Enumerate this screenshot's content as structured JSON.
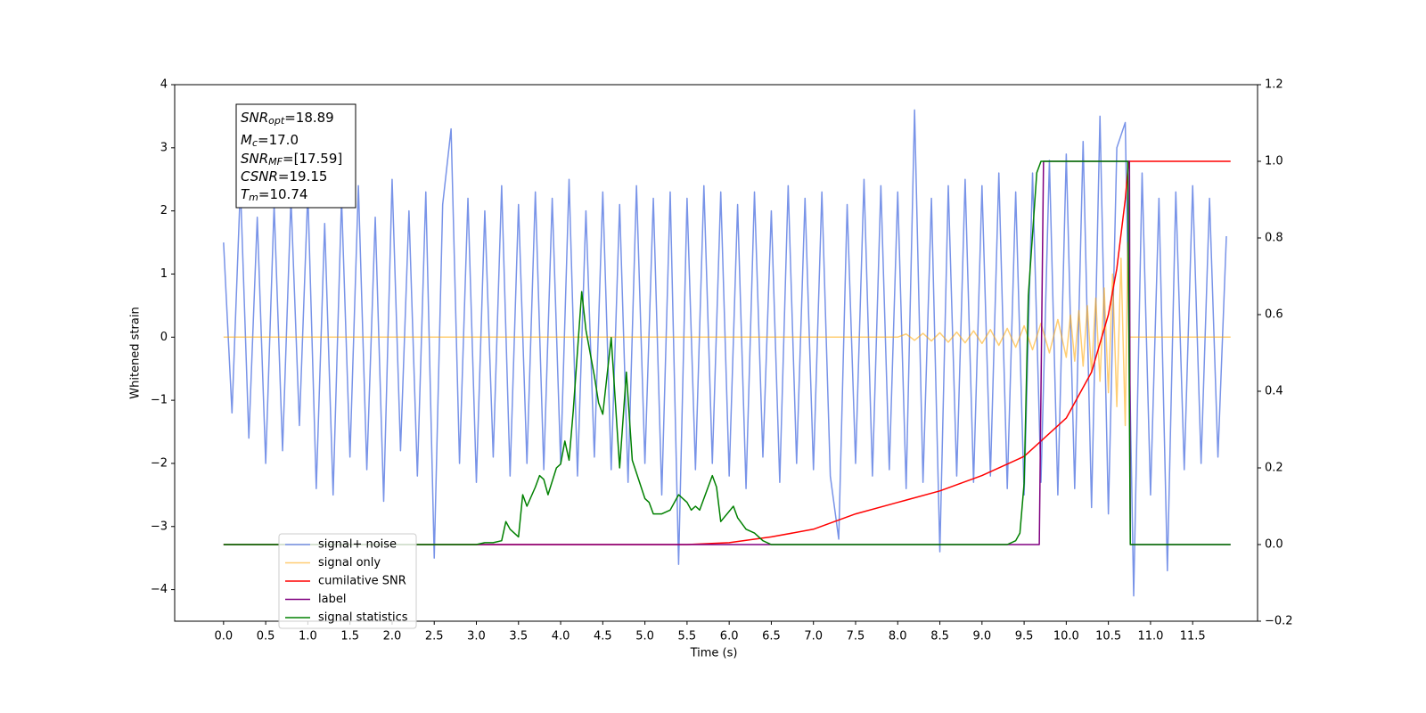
{
  "chart_data": {
    "type": "line",
    "xlabel": "Time (s)",
    "ylabel": "Whitened strain",
    "xlim": [
      -0.58,
      12.27
    ],
    "ylim": [
      -4.5,
      4
    ],
    "y2lim": [
      -0.2,
      1.2
    ],
    "xticks": [
      {
        "value": 0,
        "label": "0.0"
      },
      0.5,
      {
        "value": 1,
        "label": "1.0"
      },
      1.5,
      {
        "value": 2,
        "label": "2.0"
      },
      2.5,
      {
        "value": 3,
        "label": "3.0"
      },
      3.5,
      {
        "value": 4,
        "label": "4.0"
      },
      4.5,
      {
        "value": 5,
        "label": "5.0"
      },
      5.5,
      {
        "value": 6,
        "label": "6.0"
      },
      6.5,
      {
        "value": 7,
        "label": "7.0"
      },
      7.5,
      {
        "value": 8,
        "label": "8.0"
      },
      8.5,
      {
        "value": 9,
        "label": "9.0"
      },
      9.5,
      {
        "value": 10,
        "label": "10.0"
      },
      10.5,
      {
        "value": 11,
        "label": "11.0"
      },
      11.5
    ],
    "yticks": [
      {
        "value": -4,
        "label": "−4"
      },
      {
        "value": -3,
        "label": "−3"
      },
      {
        "value": -2,
        "label": "−2"
      },
      {
        "value": -1,
        "label": "−1"
      },
      0,
      1,
      2,
      3,
      4
    ],
    "y2ticks": [
      {
        "value": -0.2,
        "label": "−0.2"
      },
      {
        "value": 0,
        "label": "0.0"
      },
      0.2,
      0.4,
      0.6,
      0.8,
      {
        "value": 1,
        "label": "1.0"
      },
      1.2
    ],
    "legend": "lower left",
    "annotations": [
      {
        "symbol": "SNR",
        "subscript": "opt",
        "text": "=18.89"
      },
      {
        "symbol": "M",
        "subscript": "c",
        "text": "=17.0"
      },
      {
        "symbol": "SNR",
        "subscript": "MF",
        "text": "=[17.59]"
      },
      {
        "symbol": "CSNR",
        "text": "=19.15"
      },
      {
        "symbol": "T",
        "subscript": "m",
        "text": "=10.74"
      }
    ],
    "series": [
      {
        "name": "signal+ noise",
        "color": "#7893e8",
        "x": [
          0,
          0.1,
          0.2,
          0.3,
          0.4,
          0.5,
          0.6,
          0.7,
          0.8,
          0.9,
          1,
          1.1,
          1.2,
          1.3,
          1.4,
          1.5,
          1.6,
          1.7,
          1.8,
          1.9,
          2,
          2.1,
          2.2,
          2.3,
          2.4,
          2.5,
          2.6,
          2.7,
          2.8,
          2.9,
          3,
          3.1,
          3.2,
          3.3,
          3.4,
          3.5,
          3.6,
          3.7,
          3.8,
          3.9,
          4,
          4.1,
          4.2,
          4.3,
          4.4,
          4.5,
          4.6,
          4.7,
          4.8,
          4.9,
          5,
          5.1,
          5.2,
          5.3,
          5.4,
          5.5,
          5.6,
          5.7,
          5.8,
          5.9,
          6,
          6.1,
          6.2,
          6.3,
          6.4,
          6.5,
          6.6,
          6.7,
          6.8,
          6.9,
          7,
          7.1,
          7.2,
          7.3,
          7.4,
          7.5,
          7.6,
          7.7,
          7.8,
          7.9,
          8,
          8.1,
          8.2,
          8.3,
          8.4,
          8.5,
          8.6,
          8.7,
          8.8,
          8.9,
          9,
          9.1,
          9.2,
          9.3,
          9.4,
          9.5,
          9.6,
          9.7,
          9.8,
          9.9,
          10,
          10.1,
          10.2,
          10.3,
          10.4,
          10.5,
          10.6,
          10.7,
          10.8,
          10.9,
          11,
          11.1,
          11.2,
          11.3,
          11.4,
          11.5,
          11.6,
          11.7,
          11.8,
          11.9
        ],
        "values": [
          1.5,
          -1.2,
          2.4,
          -1.6,
          1.9,
          -2.0,
          2.1,
          -1.8,
          2.2,
          -1.4,
          2.3,
          -2.4,
          1.8,
          -2.5,
          2.2,
          -1.9,
          2.4,
          -2.1,
          1.9,
          -2.6,
          2.5,
          -1.8,
          2.0,
          -2.2,
          2.3,
          -3.5,
          2.1,
          3.3,
          -2.0,
          2.2,
          -2.3,
          2.0,
          -1.9,
          2.4,
          -2.2,
          2.1,
          -2.0,
          2.3,
          -2.1,
          2.2,
          -2.0,
          2.5,
          -2.2,
          2.0,
          -1.9,
          2.3,
          -2.1,
          2.1,
          -2.3,
          2.4,
          -2.0,
          2.2,
          -2.5,
          2.3,
          -3.6,
          2.2,
          -2.1,
          2.4,
          -2.0,
          2.3,
          -2.2,
          2.1,
          -2.4,
          2.3,
          -1.9,
          2.0,
          -2.3,
          2.4,
          -2.0,
          2.2,
          -2.1,
          2.3,
          -2.2,
          -3.2,
          2.1,
          -2.0,
          2.5,
          -2.2,
          2.4,
          -2.1,
          2.3,
          -2.4,
          3.6,
          -2.3,
          2.2,
          -3.4,
          2.4,
          -2.2,
          2.5,
          -2.3,
          2.4,
          -2.2,
          2.6,
          -2.4,
          2.3,
          -2.5,
          2.6,
          -2.3,
          2.8,
          -2.5,
          2.9,
          -2.4,
          3.1,
          -2.7,
          3.5,
          -2.8,
          3.0,
          3.4,
          -4.1,
          2.6,
          -2.5,
          2.2,
          -3.7,
          2.3,
          -2.1,
          2.4,
          -2.0,
          2.2,
          -1.9,
          1.6
        ]
      },
      {
        "name": "signal only",
        "color": "#ffa500",
        "x": [
          0,
          8,
          8.1,
          8.2,
          8.3,
          8.4,
          8.5,
          8.6,
          8.7,
          8.8,
          8.9,
          9,
          9.1,
          9.2,
          9.3,
          9.4,
          9.5,
          9.6,
          9.7,
          9.8,
          9.9,
          10,
          10.05,
          10.1,
          10.15,
          10.2,
          10.25,
          10.3,
          10.35,
          10.4,
          10.45,
          10.5,
          10.55,
          10.6,
          10.65,
          10.7,
          10.73,
          10.75,
          11.95
        ],
        "values": [
          0,
          0,
          0.05,
          -0.05,
          0.06,
          -0.06,
          0.07,
          -0.08,
          0.08,
          -0.09,
          0.1,
          -0.1,
          0.12,
          -0.13,
          0.14,
          -0.16,
          0.18,
          -0.2,
          0.22,
          -0.25,
          0.28,
          -0.32,
          0.35,
          -0.38,
          0.42,
          -0.46,
          0.5,
          -0.56,
          0.62,
          -0.7,
          0.78,
          -0.88,
          1.0,
          -1.1,
          1.25,
          -1.4,
          1.5,
          0,
          0
        ]
      },
      {
        "name": "cumilative SNR",
        "color": "#ff0000",
        "axis": "y2",
        "x": [
          0,
          5.5,
          6,
          6.5,
          7,
          7.5,
          8,
          8.5,
          9,
          9.5,
          10,
          10.3,
          10.5,
          10.6,
          10.7,
          10.74,
          11.95
        ],
        "values": [
          0,
          0,
          0.005,
          0.02,
          0.04,
          0.08,
          0.11,
          0.14,
          0.18,
          0.23,
          0.33,
          0.45,
          0.6,
          0.72,
          0.9,
          1,
          1
        ]
      },
      {
        "name": "label",
        "color": "#800080",
        "axis": "y2",
        "x": [
          0,
          9.68,
          9.73,
          10.75,
          10.76,
          11.95
        ],
        "values": [
          0,
          0,
          1,
          1,
          0,
          0
        ]
      },
      {
        "name": "signal statistics",
        "color": "#008000",
        "axis": "y2",
        "x": [
          0,
          3.0,
          3.1,
          3.2,
          3.3,
          3.35,
          3.4,
          3.5,
          3.55,
          3.6,
          3.7,
          3.75,
          3.8,
          3.85,
          3.95,
          4.0,
          4.05,
          4.1,
          4.15,
          4.25,
          4.3,
          4.4,
          4.45,
          4.5,
          4.6,
          4.65,
          4.7,
          4.78,
          4.85,
          5.0,
          5.05,
          5.1,
          5.2,
          5.3,
          5.4,
          5.5,
          5.55,
          5.6,
          5.65,
          5.75,
          5.8,
          5.85,
          5.9,
          6.05,
          6.1,
          6.2,
          6.3,
          6.4,
          6.5,
          9.3,
          9.4,
          9.45,
          9.5,
          9.55,
          9.65,
          9.7,
          10.73,
          10.76,
          11.95
        ],
        "values": [
          0,
          0,
          0.005,
          0.005,
          0.01,
          0.06,
          0.04,
          0.02,
          0.13,
          0.1,
          0.15,
          0.18,
          0.17,
          0.13,
          0.2,
          0.21,
          0.27,
          0.22,
          0.35,
          0.66,
          0.56,
          0.44,
          0.37,
          0.34,
          0.54,
          0.37,
          0.2,
          0.45,
          0.22,
          0.12,
          0.11,
          0.08,
          0.08,
          0.09,
          0.13,
          0.11,
          0.09,
          0.1,
          0.09,
          0.15,
          0.18,
          0.15,
          0.06,
          0.1,
          0.07,
          0.04,
          0.03,
          0.01,
          0,
          0,
          0.01,
          0.03,
          0.16,
          0.65,
          0.97,
          1,
          1,
          0,
          0
        ]
      }
    ]
  }
}
